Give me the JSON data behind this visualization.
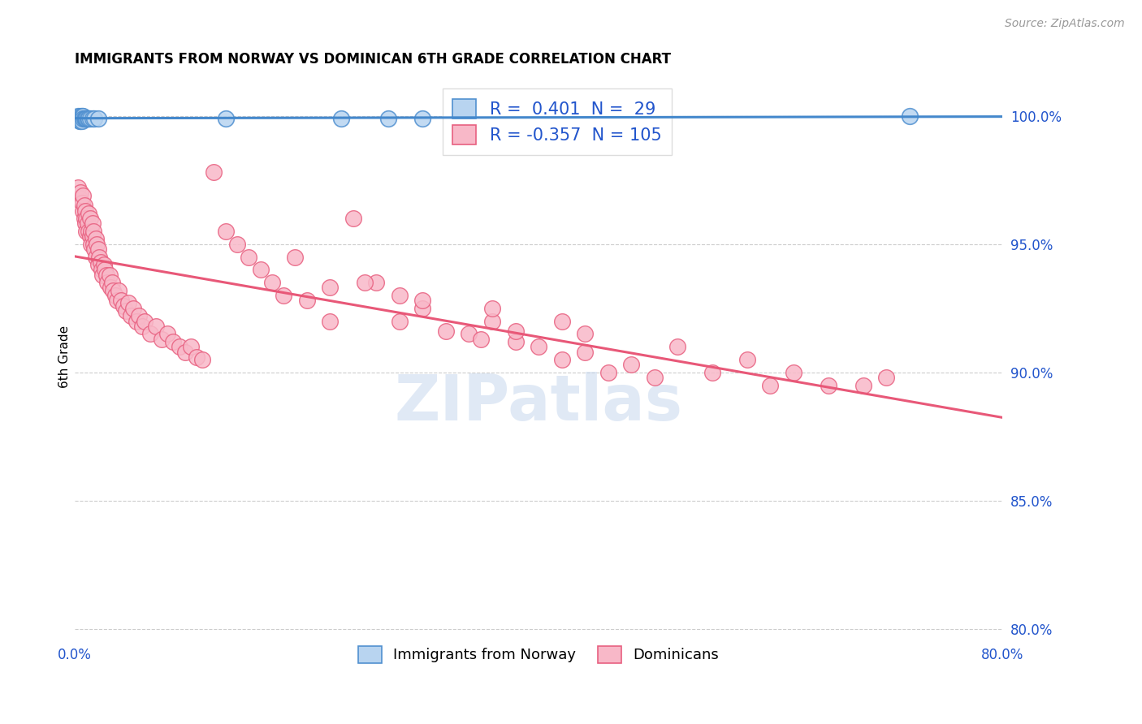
{
  "title": "IMMIGRANTS FROM NORWAY VS DOMINICAN 6TH GRADE CORRELATION CHART",
  "source": "Source: ZipAtlas.com",
  "ylabel": "6th Grade",
  "xmin": 0.0,
  "xmax": 0.8,
  "ymin": 0.796,
  "ymax": 1.016,
  "norway_R": 0.401,
  "norway_N": 29,
  "dominican_R": -0.357,
  "dominican_N": 105,
  "norway_color": "#b8d4f0",
  "dominican_color": "#f8b8c8",
  "norway_edge_color": "#5090d0",
  "dominican_edge_color": "#e86080",
  "norway_line_color": "#4488cc",
  "dominican_line_color": "#e85878",
  "legend_norway_label": "Immigrants from Norway",
  "legend_dominican_label": "Dominicans",
  "watermark_text": "ZIPatlas",
  "norway_x": [
    0.002,
    0.003,
    0.003,
    0.004,
    0.004,
    0.005,
    0.005,
    0.005,
    0.006,
    0.006,
    0.006,
    0.007,
    0.007,
    0.008,
    0.009,
    0.01,
    0.01,
    0.011,
    0.012,
    0.013,
    0.015,
    0.017,
    0.02,
    0.13,
    0.23,
    0.27,
    0.3,
    0.34,
    0.72
  ],
  "norway_y": [
    0.999,
    1.0,
    0.999,
    0.999,
    0.998,
    1.0,
    0.999,
    0.998,
    1.0,
    0.999,
    0.998,
    1.0,
    0.999,
    0.999,
    0.999,
    0.999,
    0.999,
    0.999,
    0.999,
    0.999,
    0.999,
    0.999,
    0.999,
    0.999,
    0.999,
    0.999,
    0.999,
    0.999,
    1.0
  ],
  "dominican_x": [
    0.003,
    0.004,
    0.005,
    0.006,
    0.007,
    0.007,
    0.008,
    0.008,
    0.009,
    0.009,
    0.01,
    0.01,
    0.011,
    0.012,
    0.012,
    0.013,
    0.013,
    0.014,
    0.014,
    0.015,
    0.015,
    0.016,
    0.016,
    0.017,
    0.018,
    0.018,
    0.019,
    0.02,
    0.02,
    0.021,
    0.022,
    0.023,
    0.024,
    0.025,
    0.026,
    0.027,
    0.028,
    0.03,
    0.031,
    0.032,
    0.033,
    0.035,
    0.036,
    0.038,
    0.04,
    0.042,
    0.044,
    0.046,
    0.048,
    0.05,
    0.053,
    0.055,
    0.058,
    0.06,
    0.065,
    0.07,
    0.075,
    0.08,
    0.085,
    0.09,
    0.095,
    0.1,
    0.105,
    0.11,
    0.12,
    0.13,
    0.14,
    0.15,
    0.16,
    0.17,
    0.18,
    0.19,
    0.2,
    0.22,
    0.24,
    0.26,
    0.28,
    0.3,
    0.32,
    0.34,
    0.36,
    0.38,
    0.4,
    0.42,
    0.44,
    0.46,
    0.48,
    0.5,
    0.52,
    0.55,
    0.58,
    0.6,
    0.62,
    0.65,
    0.68,
    0.7,
    0.42,
    0.44,
    0.35,
    0.38,
    0.25,
    0.3,
    0.22,
    0.28,
    0.36
  ],
  "dominican_y": [
    0.972,
    0.968,
    0.97,
    0.966,
    0.963,
    0.969,
    0.965,
    0.96,
    0.963,
    0.958,
    0.96,
    0.955,
    0.958,
    0.955,
    0.962,
    0.953,
    0.96,
    0.955,
    0.95,
    0.953,
    0.958,
    0.95,
    0.955,
    0.948,
    0.952,
    0.945,
    0.95,
    0.948,
    0.942,
    0.945,
    0.943,
    0.94,
    0.938,
    0.942,
    0.94,
    0.938,
    0.935,
    0.938,
    0.933,
    0.935,
    0.932,
    0.93,
    0.928,
    0.932,
    0.928,
    0.926,
    0.924,
    0.927,
    0.922,
    0.925,
    0.92,
    0.922,
    0.918,
    0.92,
    0.915,
    0.918,
    0.913,
    0.915,
    0.912,
    0.91,
    0.908,
    0.91,
    0.906,
    0.905,
    0.978,
    0.955,
    0.95,
    0.945,
    0.94,
    0.935,
    0.93,
    0.945,
    0.928,
    0.92,
    0.96,
    0.935,
    0.93,
    0.925,
    0.916,
    0.915,
    0.92,
    0.912,
    0.91,
    0.905,
    0.908,
    0.9,
    0.903,
    0.898,
    0.91,
    0.9,
    0.905,
    0.895,
    0.9,
    0.895,
    0.895,
    0.898,
    0.92,
    0.915,
    0.913,
    0.916,
    0.935,
    0.928,
    0.933,
    0.92,
    0.925
  ],
  "ytick_vals": [
    0.8,
    0.85,
    0.9,
    0.95,
    1.0
  ],
  "ytick_labels": [
    "80.0%",
    "85.0%",
    "90.0%",
    "95.0%",
    "100.0%"
  ]
}
